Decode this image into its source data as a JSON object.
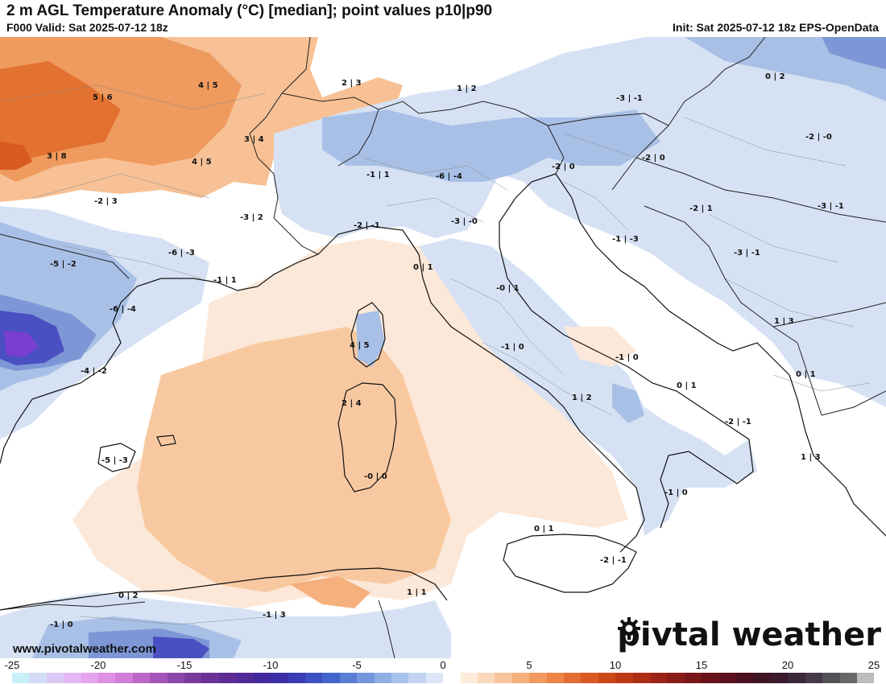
{
  "header": {
    "title": "2 m AGL Temperature Anomaly (°C) [median]; point values p10|p90",
    "valid": "F000 Valid: Sat 2025-07-12 18z",
    "init": "Init: Sat 2025-07-12 18z EPS-OpenData"
  },
  "point_values": [
    {
      "text": "4 | 5"
    },
    {
      "text": "5 | 6"
    },
    {
      "text": "2 | 3"
    },
    {
      "text": "1 | 2"
    },
    {
      "text": "-3 | -1"
    },
    {
      "text": "0 | 2"
    },
    {
      "text": "3 | 8"
    },
    {
      "text": "4 | 5"
    },
    {
      "text": "3 | 4"
    },
    {
      "text": "-1 | 1"
    },
    {
      "text": "-6 | -4"
    },
    {
      "text": "-2 | 0"
    },
    {
      "text": "-2 | 0"
    },
    {
      "text": "-2 | -0"
    },
    {
      "text": "-2 | 3"
    },
    {
      "text": "-3 | 2"
    },
    {
      "text": "-3 | -0"
    },
    {
      "text": "-2 | 1"
    },
    {
      "text": "-3 | -1"
    },
    {
      "text": "-2 | -1"
    },
    {
      "text": "-3 | -1"
    },
    {
      "text": "-5 | -2"
    },
    {
      "text": "-6 | -3"
    },
    {
      "text": "-1 | 1"
    },
    {
      "text": "0 | 1"
    },
    {
      "text": "-1 | -3"
    },
    {
      "text": "-0 | 1"
    },
    {
      "text": "-6 | -4"
    },
    {
      "text": "4 | 5"
    },
    {
      "text": "-1 | 0"
    },
    {
      "text": "-1 | 0"
    },
    {
      "text": "1 | 3"
    },
    {
      "text": "-4 | -2"
    },
    {
      "text": "0 | 1"
    },
    {
      "text": "0 | 1"
    },
    {
      "text": "2 | 4"
    },
    {
      "text": "1 | 2"
    },
    {
      "text": "-2 | -1"
    },
    {
      "text": "-5 | -3"
    },
    {
      "text": "-0 | 0"
    },
    {
      "text": "-1 | 0"
    },
    {
      "text": "1 | 3"
    },
    {
      "text": "0 | 1"
    },
    {
      "text": "-2 | -1"
    },
    {
      "text": "0 | 2"
    },
    {
      "text": "1 | 1"
    },
    {
      "text": "-1 | 3"
    },
    {
      "text": "-1 | 0"
    }
  ],
  "footer": {
    "website": "www.pivotalweather.com",
    "brand_prefix": "piv",
    "brand_suffix": "tal weather",
    "brand_logo": "gear-o-logo"
  },
  "colorbar": {
    "ticks": [
      "-25",
      "-20",
      "-15",
      "-10",
      "-5",
      "0",
      "5",
      "10",
      "15",
      "20",
      "25"
    ],
    "range": [
      -25,
      25
    ],
    "step": 1,
    "colors": [
      "#c8f0f8",
      "#d2dcf6",
      "#dcc8f4",
      "#e4b6f2",
      "#e6a4ec",
      "#e090e4",
      "#d07cd8",
      "#bc68c8",
      "#a456b8",
      "#8c46a8",
      "#7a3a9c",
      "#6a3296",
      "#5c2c94",
      "#502a98",
      "#44299e",
      "#3c2ea8",
      "#3a3cb6",
      "#3c50c2",
      "#4466cc",
      "#5a7ed4",
      "#7496dc",
      "#8eaee4",
      "#a8c2ec",
      "#c2d4f2",
      "#dce6f8",
      "#ffffff",
      "#fdebdc",
      "#fad8bc",
      "#f8c49c",
      "#f5b07e",
      "#f19a60",
      "#eb8446",
      "#e36e32",
      "#d95a22",
      "#cc4818",
      "#be3a14",
      "#ae2e14",
      "#9c2416",
      "#8a1c18",
      "#78161a",
      "#68121a",
      "#5a101c",
      "#4c1020",
      "#3e1424",
      "#3a1a2c",
      "#3c2838",
      "#463a48",
      "#545058",
      "#66686a",
      "#bcbcbc"
    ],
    "labels_color": "#111111"
  },
  "map": {
    "colors": {
      "coast": "#111111",
      "borders": "#222222",
      "admin": "#8a8a8a",
      "warm_light": "#fce8d8",
      "warm_mid": "#f8c9a0",
      "warm_strong": "#ef9a5e",
      "warm_deep": "#e3712f",
      "cool_light": "#d6e2f4",
      "cool_mid": "#a9c0e6",
      "cool_strong": "#7d97d6",
      "cool_deep": "#4a4fc2",
      "cool_violet": "#7a3fd0"
    }
  }
}
